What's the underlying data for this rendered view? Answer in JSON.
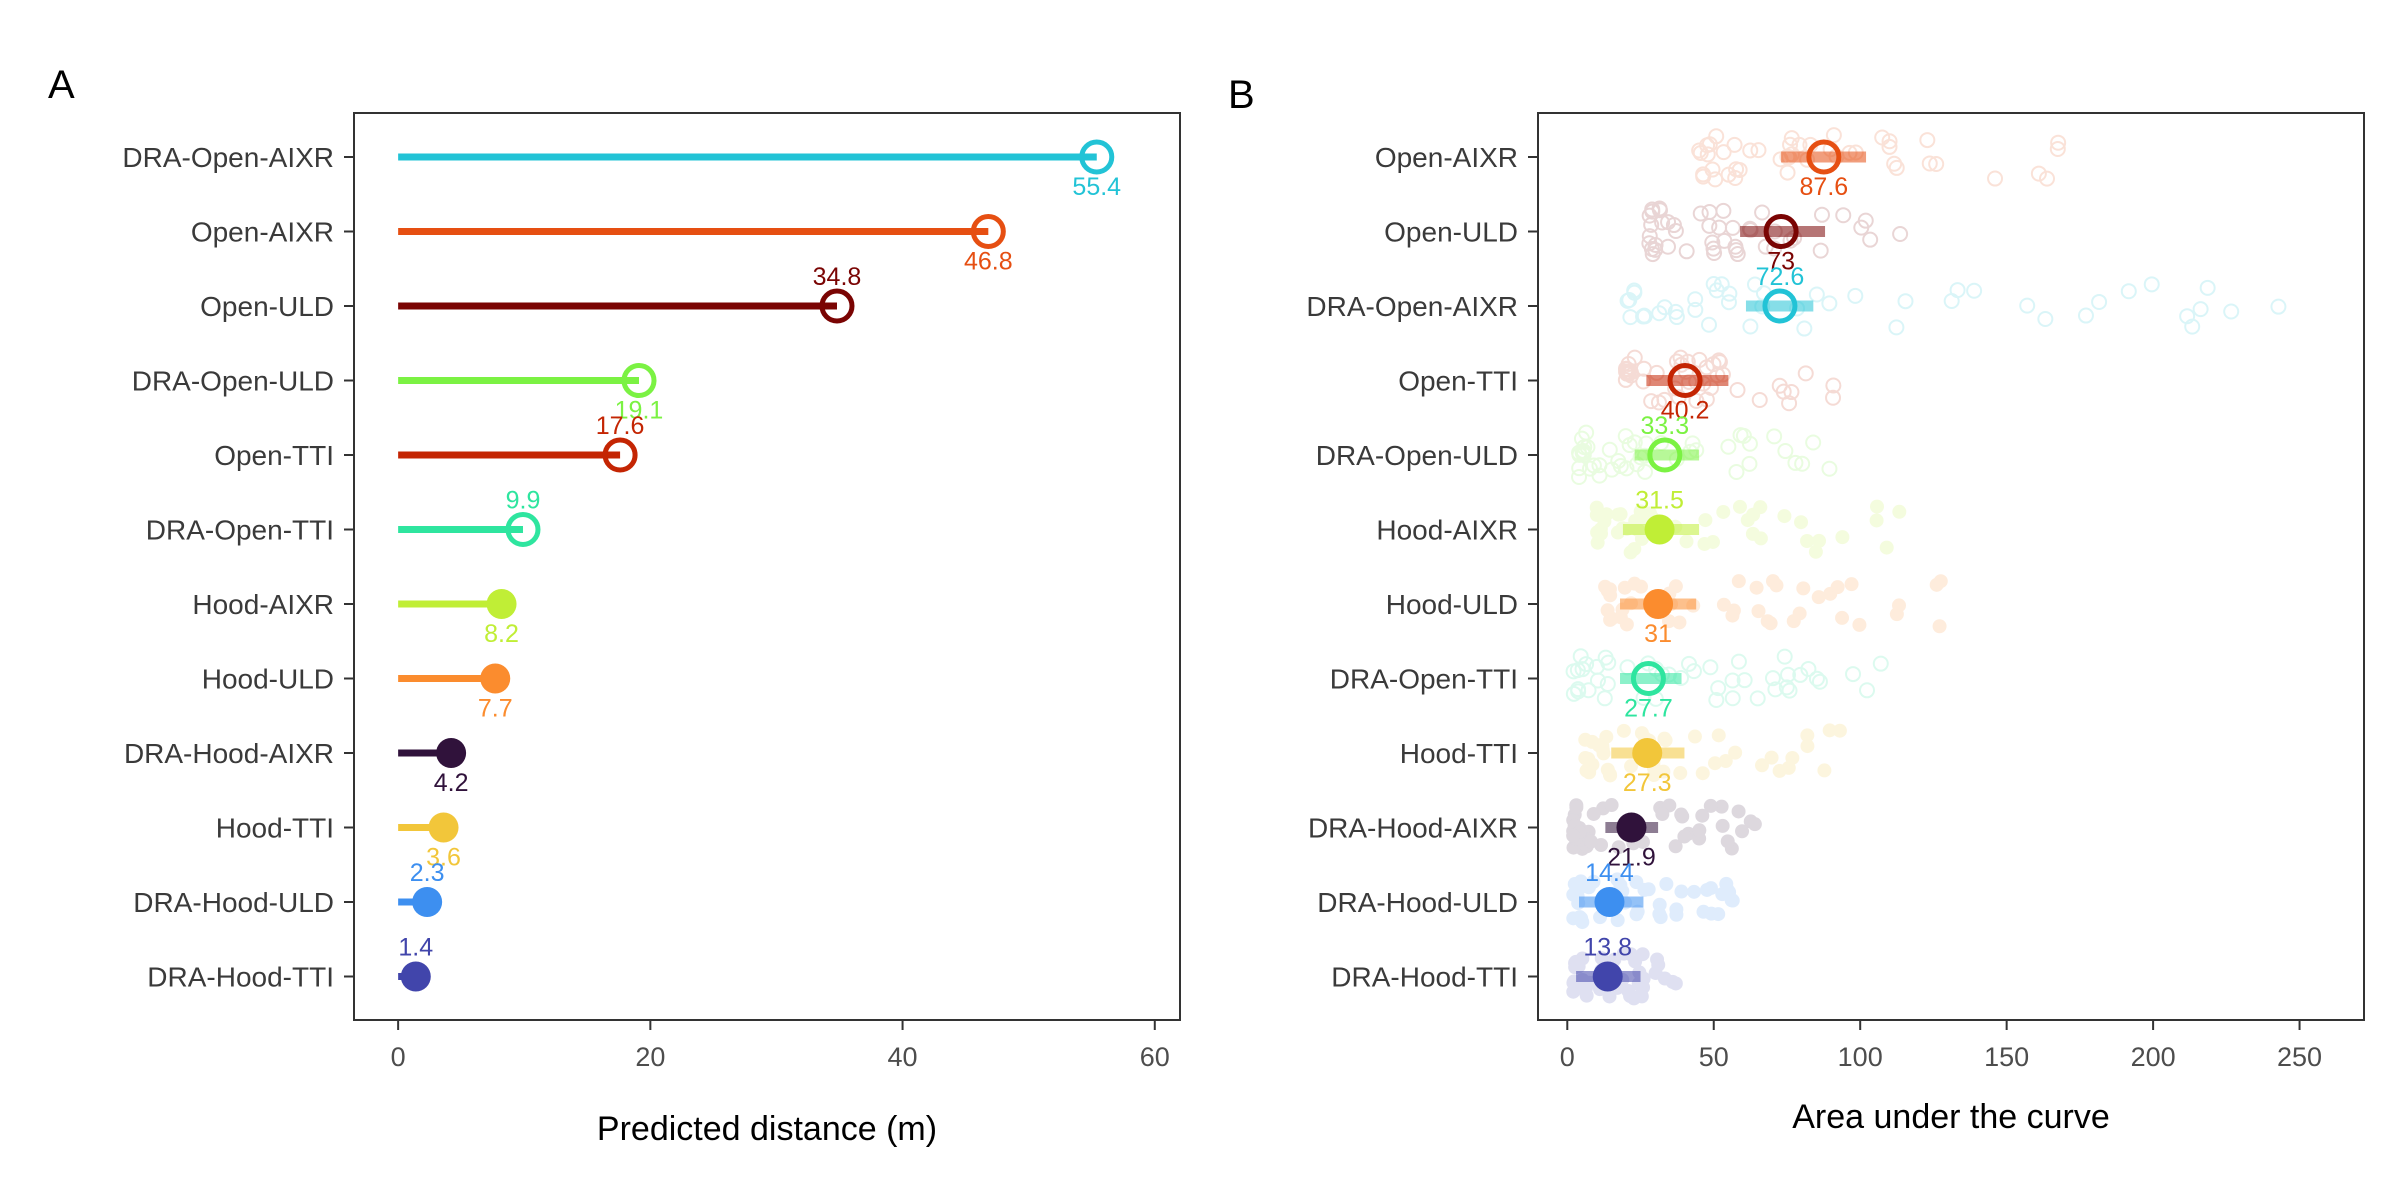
{
  "panels": {
    "a": {
      "letter": "A"
    },
    "b": {
      "letter": "B"
    }
  },
  "chart_data": [
    {
      "type": "lollipop",
      "panel": "A",
      "xlabel": "Predicted distance (m)",
      "ylabel": "",
      "xlim": [
        -3.5,
        62
      ],
      "xticks": [
        0,
        20,
        40,
        60
      ],
      "grid": false,
      "legend": "none",
      "points": [
        {
          "label": "DRA-Open-AIXR",
          "value": 55.4,
          "value_label": "55.4",
          "color": "#22c3d6",
          "filled": false,
          "label_pos": "below"
        },
        {
          "label": "Open-AIXR",
          "value": 46.8,
          "value_label": "46.8",
          "color": "#e64f12",
          "filled": false,
          "label_pos": "below"
        },
        {
          "label": "Open-ULD",
          "value": 34.8,
          "value_label": "34.8",
          "color": "#7a0403",
          "filled": false,
          "label_pos": "above"
        },
        {
          "label": "DRA-Open-ULD",
          "value": 19.1,
          "value_label": "19.1",
          "color": "#7bf243",
          "filled": false,
          "label_pos": "below"
        },
        {
          "label": "Open-TTI",
          "value": 17.6,
          "value_label": "17.6",
          "color": "#c42503",
          "filled": false,
          "label_pos": "above"
        },
        {
          "label": "DRA-Open-TTI",
          "value": 9.9,
          "value_label": "9.9",
          "color": "#2ee59f",
          "filled": false,
          "label_pos": "above"
        },
        {
          "label": "Hood-AIXR",
          "value": 8.2,
          "value_label": "8.2",
          "color": "#c0ee36",
          "filled": true,
          "label_pos": "below"
        },
        {
          "label": "Hood-ULD",
          "value": 7.7,
          "value_label": "7.7",
          "color": "#fb8c2e",
          "filled": true,
          "label_pos": "below"
        },
        {
          "label": "DRA-Hood-AIXR",
          "value": 4.2,
          "value_label": "4.2",
          "color": "#30123b",
          "filled": true,
          "label_pos": "below"
        },
        {
          "label": "Hood-TTI",
          "value": 3.6,
          "value_label": "3.6",
          "color": "#f2c63a",
          "filled": true,
          "label_pos": "below"
        },
        {
          "label": "DRA-Hood-ULD",
          "value": 2.3,
          "value_label": "2.3",
          "color": "#3d8ff0",
          "filled": true,
          "label_pos": "above"
        },
        {
          "label": "DRA-Hood-TTI",
          "value": 1.4,
          "value_label": "1.4",
          "color": "#4145ab",
          "filled": true,
          "label_pos": "above"
        }
      ]
    },
    {
      "type": "scatter",
      "panel": "B",
      "xlabel": "Area under the curve",
      "ylabel": "",
      "xlim": [
        -10,
        272
      ],
      "xticks": [
        0,
        50,
        100,
        150,
        200,
        250
      ],
      "grid": false,
      "legend": "none",
      "series": [
        {
          "label": "Open-AIXR",
          "mean": 87.6,
          "value_label": "87.6",
          "lo": 73,
          "hi": 102,
          "color": "#e64f12",
          "filled": false,
          "label_pos": "below",
          "spread": [
            45,
            178
          ]
        },
        {
          "label": "Open-ULD",
          "mean": 73,
          "value_label": "73",
          "lo": 59,
          "hi": 88,
          "color": "#7a0403",
          "filled": false,
          "label_pos": "below",
          "spread": [
            28,
            118
          ]
        },
        {
          "label": "DRA-Open-AIXR",
          "mean": 72.6,
          "value_label": "72.6",
          "lo": 61,
          "hi": 84,
          "color": "#22c3d6",
          "filled": false,
          "label_pos": "above",
          "spread": [
            20,
            260
          ]
        },
        {
          "label": "Open-TTI",
          "mean": 40.2,
          "value_label": "40.2",
          "lo": 27,
          "hi": 55,
          "color": "#c42503",
          "filled": false,
          "label_pos": "below",
          "spread": [
            20,
            96
          ]
        },
        {
          "label": "DRA-Open-ULD",
          "mean": 33.3,
          "value_label": "33.3",
          "lo": 23,
          "hi": 45,
          "color": "#7bf243",
          "filled": false,
          "label_pos": "above",
          "spread": [
            4,
            95
          ]
        },
        {
          "label": "Hood-AIXR",
          "mean": 31.5,
          "value_label": "31.5",
          "lo": 19,
          "hi": 45,
          "color": "#c0ee36",
          "filled": true,
          "label_pos": "above",
          "spread": [
            10,
            115
          ]
        },
        {
          "label": "Hood-ULD",
          "mean": 31,
          "value_label": "31",
          "lo": 18,
          "hi": 44,
          "color": "#fb8c2e",
          "filled": true,
          "label_pos": "below",
          "spread": [
            12,
            132
          ]
        },
        {
          "label": "DRA-Open-TTI",
          "mean": 27.7,
          "value_label": "27.7",
          "lo": 18,
          "hi": 39,
          "color": "#2ee59f",
          "filled": false,
          "label_pos": "below",
          "spread": [
            2,
            112
          ]
        },
        {
          "label": "Hood-TTI",
          "mean": 27.3,
          "value_label": "27.3",
          "lo": 15,
          "hi": 40,
          "color": "#f2c63a",
          "filled": true,
          "label_pos": "below",
          "spread": [
            6,
            95
          ]
        },
        {
          "label": "DRA-Hood-AIXR",
          "mean": 21.9,
          "value_label": "21.9",
          "lo": 13,
          "hi": 31,
          "color": "#30123b",
          "filled": true,
          "label_pos": "below",
          "spread": [
            2,
            65
          ]
        },
        {
          "label": "DRA-Hood-ULD",
          "mean": 14.4,
          "value_label": "14.4",
          "lo": 4,
          "hi": 26,
          "color": "#3d8ff0",
          "filled": true,
          "label_pos": "above",
          "spread": [
            2,
            58
          ]
        },
        {
          "label": "DRA-Hood-TTI",
          "mean": 13.8,
          "value_label": "13.8",
          "lo": 3,
          "hi": 25,
          "color": "#4145ab",
          "filled": true,
          "label_pos": "above",
          "spread": [
            2,
            38
          ]
        }
      ]
    }
  ]
}
